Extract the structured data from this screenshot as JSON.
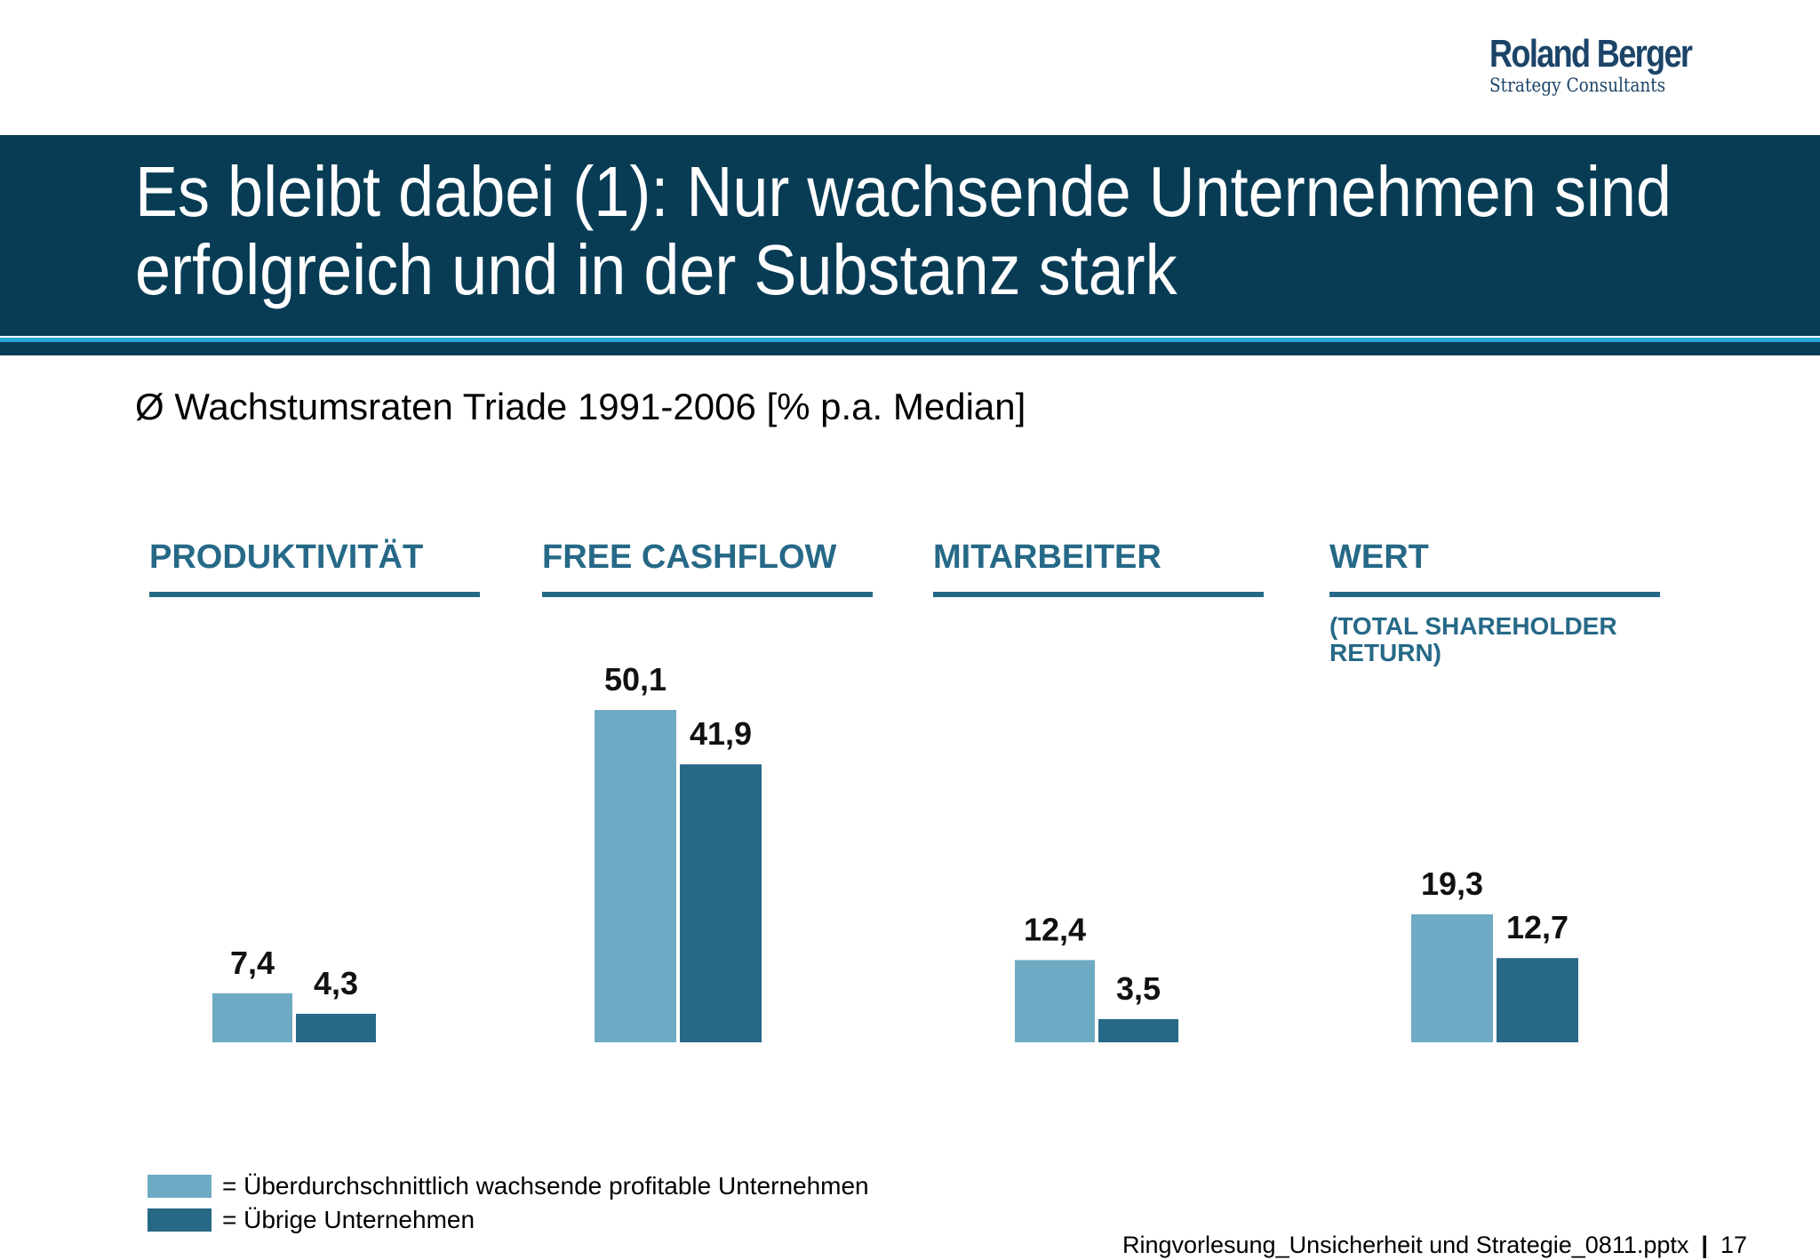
{
  "brand": {
    "name": "Roland Berger",
    "tagline": "Strategy Consultants"
  },
  "header": {
    "title_line1": "Es bleibt dabei (1): Nur wachsende Unternehmen sind",
    "title_line2": "erfolgreich und in der Substanz stark"
  },
  "subtitle": "Ø Wachstumsraten Triade 1991-2006 [% p.a. Median]",
  "colors": {
    "title_bar": "#083c55",
    "accent_line": "#28a7d6",
    "category_text": "#266987",
    "series_light": "#6faac4",
    "series_dark": "#266987"
  },
  "chart_data": {
    "type": "bar",
    "categories": [
      "PRODUKTIVITÄT",
      "FREE CASHFLOW",
      "MITARBEITER",
      "WERT"
    ],
    "category_notes": [
      "",
      "",
      "",
      "(TOTAL SHAREHOLDER RETURN)"
    ],
    "series": [
      {
        "name": "= Überdurchschnittlich wachsende profitable Unternehmen",
        "values": [
          7.4,
          50.1,
          12.4,
          19.3
        ],
        "labels": [
          "7,4",
          "50,1",
          "12,4",
          "19,3"
        ],
        "color": "#6faac4"
      },
      {
        "name": "= Übrige Unternehmen",
        "values": [
          4.3,
          41.9,
          3.5,
          12.7
        ],
        "labels": [
          "4,3",
          "41,9",
          "3,5",
          "12,7"
        ],
        "color": "#266987"
      }
    ],
    "per_category_max": [
      12,
      50.1,
      20,
      19.3
    ],
    "xlabel": "",
    "ylabel": "",
    "legend_position": "bottom-left",
    "grid": false
  },
  "footer": {
    "filename": "Ringvorlesung_Unsicherheit und Strategie_0811.pptx",
    "separator": "|",
    "page": "17"
  }
}
